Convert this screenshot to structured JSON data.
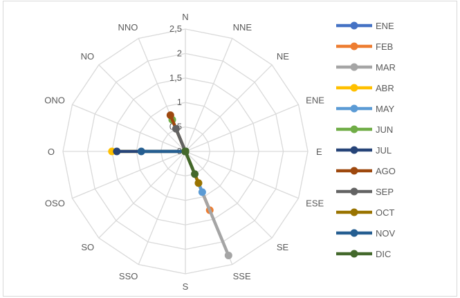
{
  "chart_data": {
    "type": "radar",
    "title": "",
    "directions": [
      "N",
      "NNE",
      "NE",
      "ENE",
      "E",
      "ESE",
      "SE",
      "SSE",
      "S",
      "SSO",
      "SO",
      "OSO",
      "O",
      "ONO",
      "NO",
      "NNO"
    ],
    "radial_ticks": [
      "0",
      "0,5",
      "1",
      "1,5",
      "2",
      "2,5"
    ],
    "rmax": 2.5,
    "grid": true,
    "legend": "right",
    "series": [
      {
        "name": "ENE",
        "color": "#4472C4",
        "values": [
          0,
          0,
          0,
          0,
          0,
          0,
          0,
          0,
          0,
          0,
          0,
          0,
          0,
          0,
          0,
          0
        ]
      },
      {
        "name": "FEB",
        "color": "#ED7D31",
        "values": [
          0,
          0,
          0,
          0,
          0,
          0,
          0,
          1.3,
          0,
          0,
          0,
          0,
          0,
          0,
          0,
          0
        ]
      },
      {
        "name": "MAR",
        "color": "#A5A5A5",
        "values": [
          0,
          0,
          0,
          0,
          0,
          0,
          0,
          2.3,
          0,
          0,
          0,
          0,
          0,
          0,
          0,
          0
        ]
      },
      {
        "name": "ABR",
        "color": "#FFC000",
        "values": [
          0,
          0,
          0,
          0,
          0,
          0,
          0,
          0,
          0,
          0,
          0,
          0,
          1.5,
          0,
          0,
          0
        ]
      },
      {
        "name": "MAY",
        "color": "#5B9BD5",
        "values": [
          0,
          0,
          0,
          0,
          0,
          0,
          0,
          0.9,
          0,
          0,
          0,
          0,
          0,
          0,
          0,
          0
        ]
      },
      {
        "name": "JUN",
        "color": "#70AD47",
        "values": [
          0,
          0,
          0,
          0,
          0,
          0,
          0,
          0,
          0,
          0,
          0,
          0,
          0,
          0,
          0,
          0.7
        ]
      },
      {
        "name": "JUL",
        "color": "#264478",
        "values": [
          0,
          0,
          0,
          0,
          0,
          0,
          0,
          0,
          0,
          0,
          0,
          0,
          1.4,
          0,
          0,
          0
        ]
      },
      {
        "name": "AGO",
        "color": "#9E480E",
        "values": [
          0,
          0,
          0,
          0,
          0,
          0,
          0,
          0,
          0,
          0,
          0,
          0,
          0,
          0,
          0,
          0.8
        ]
      },
      {
        "name": "SEP",
        "color": "#636363",
        "values": [
          0,
          0,
          0,
          0,
          0,
          0,
          0,
          0,
          0,
          0,
          0,
          0,
          0,
          0,
          0,
          0.5
        ]
      },
      {
        "name": "OCT",
        "color": "#997300",
        "values": [
          0,
          0,
          0,
          0,
          0,
          0,
          0,
          0.7,
          0,
          0,
          0,
          0,
          0,
          0,
          0,
          0
        ]
      },
      {
        "name": "NOV",
        "color": "#255E91",
        "values": [
          0,
          0,
          0,
          0,
          0,
          0,
          0,
          0,
          0,
          0,
          0,
          0,
          0.9,
          0,
          0,
          0
        ]
      },
      {
        "name": "DIC",
        "color": "#43682B",
        "values": [
          0,
          0,
          0,
          0,
          0,
          0,
          0,
          0.5,
          0,
          0,
          0,
          0,
          0,
          0,
          0,
          0
        ]
      }
    ]
  }
}
